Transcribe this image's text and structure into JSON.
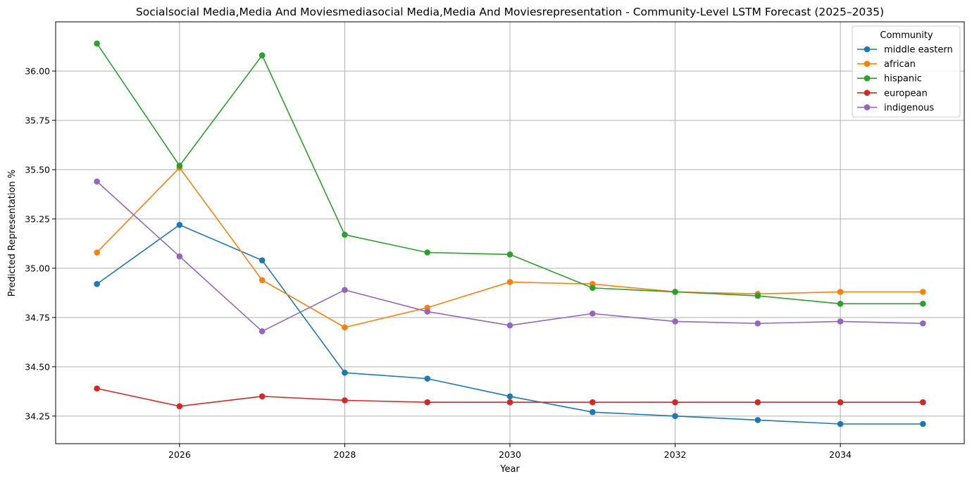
{
  "chart_data": {
    "type": "line",
    "title": "Socialsocial Media,Media And Moviesmediasocial Media,Media And Moviesrepresentation - Community-Level LSTM Forecast (2025–2035)",
    "xlabel": "Year",
    "ylabel": "Predicted Representation %",
    "x": [
      2025,
      2026,
      2027,
      2028,
      2029,
      2030,
      2031,
      2032,
      2033,
      2034,
      2035
    ],
    "xticks": [
      "2026",
      "2028",
      "2030",
      "2032",
      "2034"
    ],
    "yticks": [
      "34.25",
      "34.50",
      "34.75",
      "35.00",
      "35.25",
      "35.50",
      "35.75",
      "36.00"
    ],
    "xlim": [
      2024.5,
      2035.5
    ],
    "ylim": [
      34.11,
      36.25
    ],
    "grid": true,
    "legend": {
      "title": "Community",
      "placement": "top-right"
    },
    "series": [
      {
        "name": "middle eastern",
        "color": "#1f77b4",
        "values": [
          34.92,
          35.22,
          35.04,
          34.47,
          34.44,
          34.35,
          34.27,
          34.25,
          34.23,
          34.21,
          34.21
        ]
      },
      {
        "name": "african",
        "color": "#ff7f0e",
        "values": [
          35.08,
          35.51,
          34.94,
          34.7,
          34.8,
          34.93,
          34.92,
          34.88,
          34.87,
          34.88,
          34.88
        ]
      },
      {
        "name": "hispanic",
        "color": "#2ca02c",
        "values": [
          36.14,
          35.52,
          36.08,
          35.17,
          35.08,
          35.07,
          34.9,
          34.88,
          34.86,
          34.82,
          34.82
        ]
      },
      {
        "name": "european",
        "color": "#d62728",
        "values": [
          34.39,
          34.3,
          34.35,
          34.33,
          34.32,
          34.32,
          34.32,
          34.32,
          34.32,
          34.32,
          34.32
        ]
      },
      {
        "name": "indigenous",
        "color": "#9467bd",
        "values": [
          35.44,
          35.06,
          34.68,
          34.89,
          34.78,
          34.71,
          34.77,
          34.73,
          34.72,
          34.73,
          34.72
        ]
      }
    ]
  }
}
